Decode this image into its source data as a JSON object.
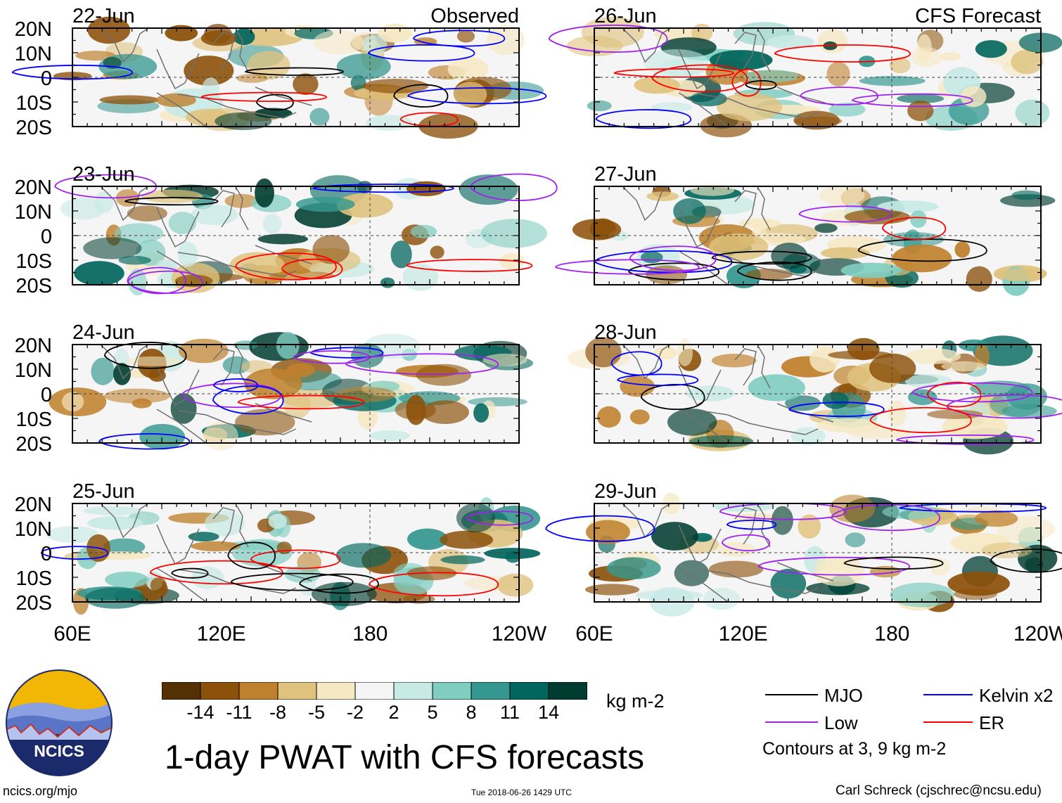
{
  "panels_observed": [
    {
      "date": "22-Jun",
      "header": "Observed"
    },
    {
      "date": "23-Jun"
    },
    {
      "date": "24-Jun"
    },
    {
      "date": "25-Jun"
    }
  ],
  "panels_forecast": [
    {
      "date": "26-Jun",
      "header": "CFS Forecast"
    },
    {
      "date": "27-Jun"
    },
    {
      "date": "28-Jun"
    },
    {
      "date": "29-Jun"
    }
  ],
  "axes": {
    "lat_labels": [
      "20N",
      "10N",
      "0",
      "10S",
      "20S"
    ],
    "lon_labels": [
      "60E",
      "120E",
      "180",
      "120W"
    ]
  },
  "colorbar": {
    "labels": [
      "-14",
      "-11",
      "-8",
      "-5",
      "-2",
      "2",
      "5",
      "8",
      "11",
      "14"
    ],
    "colors": [
      "#543005",
      "#8c510a",
      "#bf812d",
      "#dfc27d",
      "#f6e8c3",
      "#f5f5f5",
      "#c7eae5",
      "#80cdc1",
      "#35978f",
      "#01665e",
      "#003c30"
    ],
    "units": "kg m-2"
  },
  "title": "1-day PWAT with CFS forecasts",
  "legend": {
    "items": [
      {
        "label": "MJO",
        "color": "#000000"
      },
      {
        "label": "Kelvin x2",
        "color": "#0000ff"
      },
      {
        "label": "Low",
        "color": "#a020f0"
      },
      {
        "label": "ER",
        "color": "#ff0000"
      }
    ],
    "note": "Contours at 3, 9 kg m-2"
  },
  "logo": {
    "text": "NCICS"
  },
  "footer": {
    "left": "ncics.org/mjo",
    "center": "Tue 2018-06-26 1429 UTC",
    "right": "Carl Schreck (cjschrec@ncsu.edu)"
  }
}
